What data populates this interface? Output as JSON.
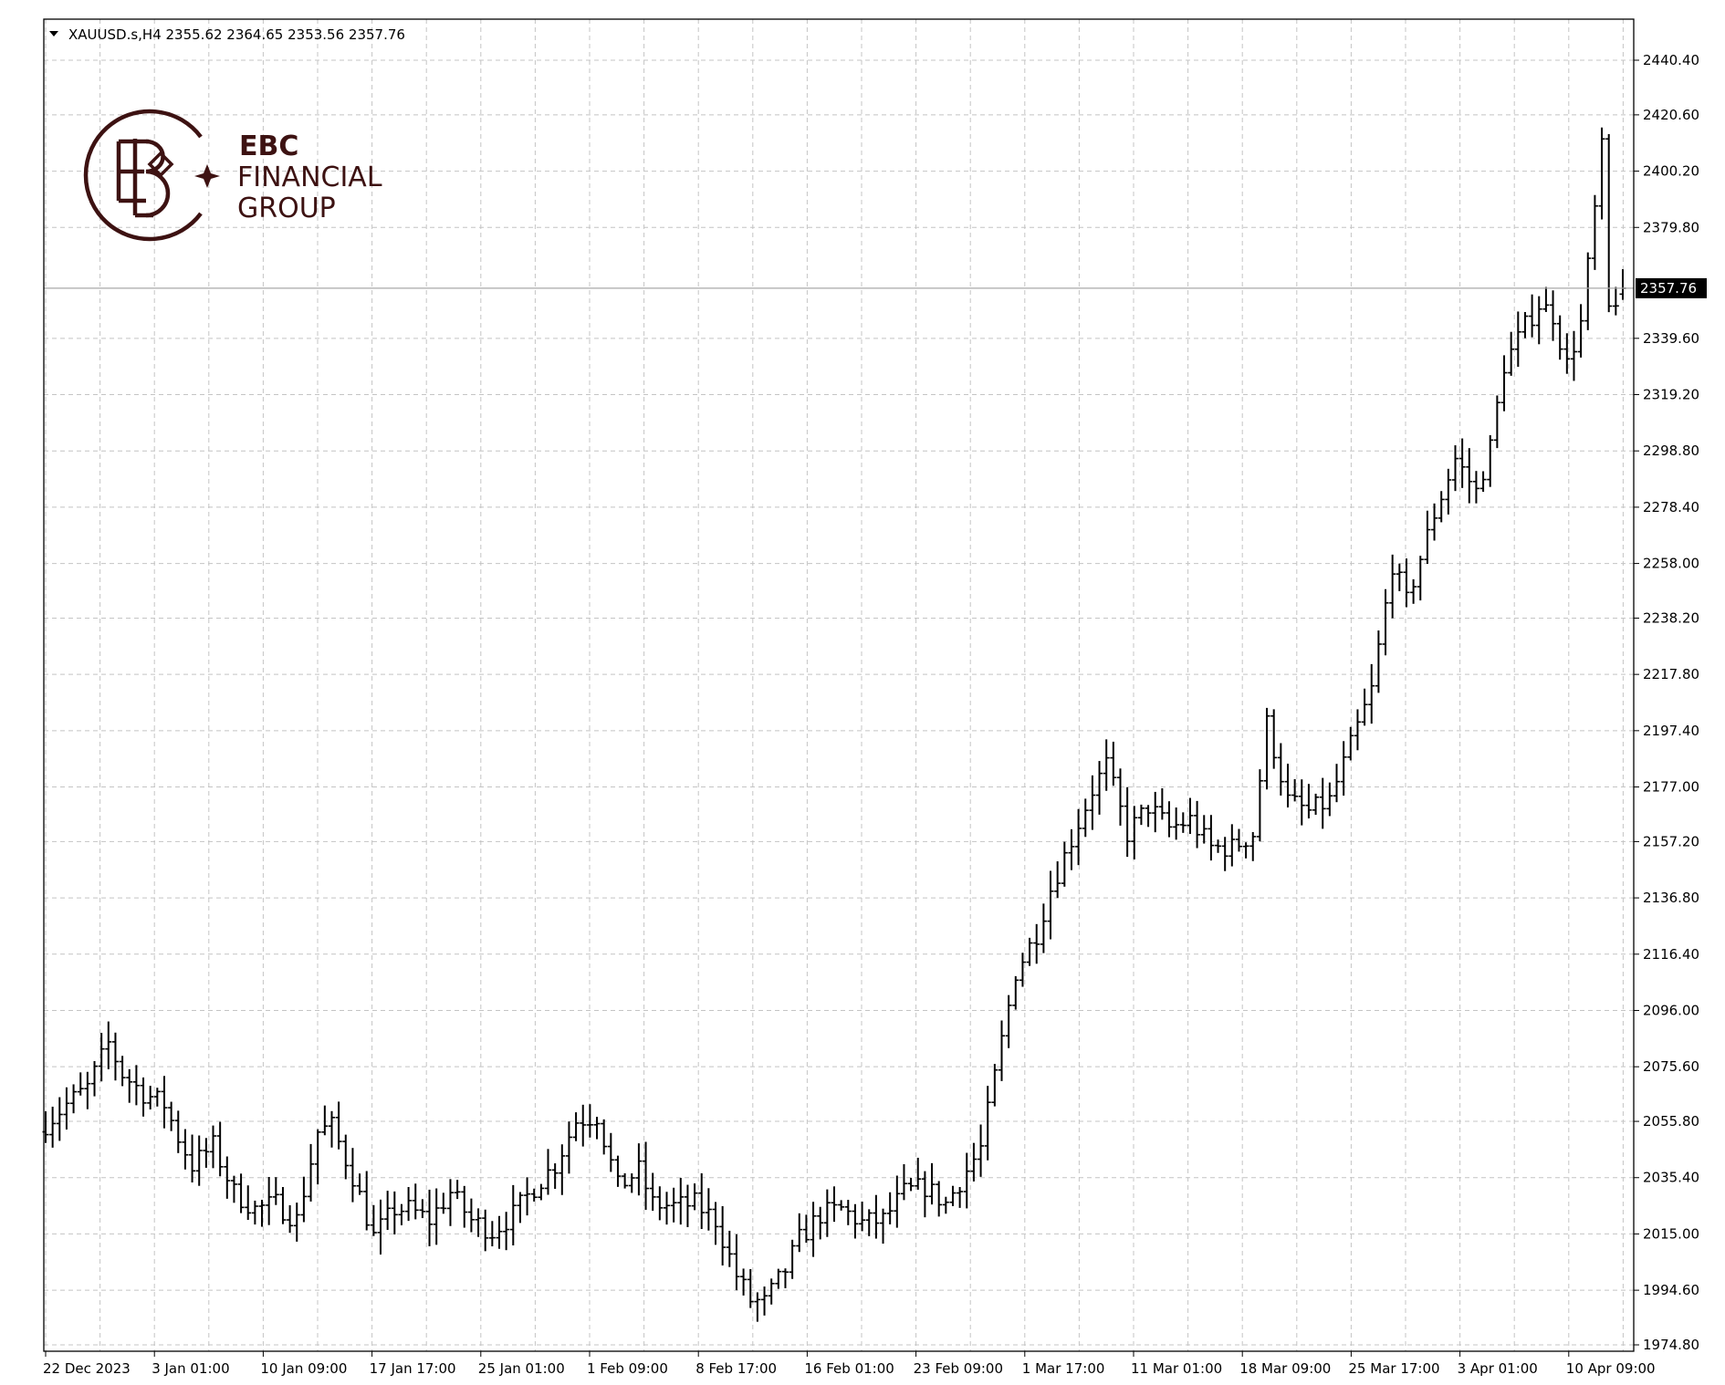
{
  "header": {
    "symbol_line": "XAUUSD.s,H4  2355.62 2364.65 2353.56 2357.76"
  },
  "logo": {
    "name": "EBC",
    "line2": "FINANCIAL",
    "line3": "GROUP",
    "color": "#3d1212"
  },
  "chart_data": {
    "type": "ohlc-bar",
    "symbol": "XAUUSD.s",
    "timeframe": "H4",
    "last_ohlc": {
      "open": 2355.62,
      "high": 2364.65,
      "low": 2353.56,
      "close": 2357.76
    },
    "current_price_label": "2357.76",
    "ylim": [
      1974.8,
      2450.0
    ],
    "y_ticks": [
      "2440.40",
      "2420.60",
      "2400.20",
      "2379.80",
      "2357.76",
      "2339.60",
      "2319.20",
      "2298.80",
      "2278.40",
      "2258.00",
      "2238.20",
      "2217.80",
      "2197.40",
      "2177.00",
      "2157.20",
      "2136.80",
      "2116.40",
      "2096.00",
      "2075.60",
      "2055.80",
      "2035.40",
      "2015.00",
      "1994.60",
      "1974.80"
    ],
    "x_ticks": [
      "22 Dec 2023",
      "3 Jan 01:00",
      "10 Jan 09:00",
      "17 Jan 17:00",
      "25 Jan 01:00",
      "1 Feb 09:00",
      "8 Feb 17:00",
      "16 Feb 01:00",
      "23 Feb 09:00",
      "1 Mar 17:00",
      "11 Mar 01:00",
      "18 Mar 09:00",
      "25 Mar 17:00",
      "3 Apr 01:00",
      "10 Apr 09:00"
    ],
    "close_path": [
      [
        0,
        2055
      ],
      [
        3,
        2062
      ],
      [
        6,
        2068
      ],
      [
        9,
        2084
      ],
      [
        11,
        2073
      ],
      [
        14,
        2066
      ],
      [
        17,
        2062
      ],
      [
        19,
        2050
      ],
      [
        21,
        2040
      ],
      [
        24,
        2047
      ],
      [
        27,
        2030
      ],
      [
        30,
        2024
      ],
      [
        33,
        2026
      ],
      [
        36,
        2020
      ],
      [
        39,
        2052
      ],
      [
        41,
        2054
      ],
      [
        44,
        2036
      ],
      [
        47,
        2014
      ],
      [
        50,
        2024
      ],
      [
        52,
        2024
      ],
      [
        55,
        2020
      ],
      [
        58,
        2030
      ],
      [
        61,
        2020
      ],
      [
        64,
        2016
      ],
      [
        67,
        2022
      ],
      [
        70,
        2032
      ],
      [
        73,
        2040
      ],
      [
        76,
        2056
      ],
      [
        79,
        2058
      ],
      [
        82,
        2032
      ],
      [
        85,
        2038
      ],
      [
        87,
        2026
      ],
      [
        90,
        2025
      ],
      [
        93,
        2026
      ],
      [
        96,
        2020
      ],
      [
        99,
        2000
      ],
      [
        101,
        1991
      ],
      [
        103,
        1990
      ],
      [
        106,
        2002
      ],
      [
        108,
        2013
      ],
      [
        111,
        2022
      ],
      [
        114,
        2024
      ],
      [
        117,
        2019
      ],
      [
        120,
        2020
      ],
      [
        123,
        2030
      ],
      [
        126,
        2032
      ],
      [
        129,
        2026
      ],
      [
        131,
        2034
      ],
      [
        134,
        2046
      ],
      [
        137,
        2085
      ],
      [
        139,
        2110
      ],
      [
        142,
        2124
      ],
      [
        144,
        2140
      ],
      [
        147,
        2158
      ],
      [
        150,
        2176
      ],
      [
        152,
        2185
      ],
      [
        155,
        2160
      ],
      [
        158,
        2170
      ],
      [
        161,
        2162
      ],
      [
        164,
        2165
      ],
      [
        167,
        2155
      ],
      [
        170,
        2155
      ],
      [
        173,
        2160
      ],
      [
        175,
        2200
      ],
      [
        178,
        2172
      ],
      [
        181,
        2168
      ],
      [
        184,
        2172
      ],
      [
        187,
        2192
      ],
      [
        190,
        2212
      ],
      [
        193,
        2258
      ],
      [
        195,
        2244
      ],
      [
        197,
        2260
      ],
      [
        199,
        2276
      ],
      [
        202,
        2296
      ],
      [
        205,
        2284
      ],
      [
        207,
        2300
      ],
      [
        209,
        2330
      ],
      [
        212,
        2344
      ],
      [
        214,
        2352
      ],
      [
        216,
        2348
      ],
      [
        218,
        2330
      ],
      [
        220,
        2345
      ],
      [
        222,
        2386
      ],
      [
        223,
        2408
      ],
      [
        224,
        2350
      ],
      [
        226,
        2357.76
      ]
    ]
  }
}
